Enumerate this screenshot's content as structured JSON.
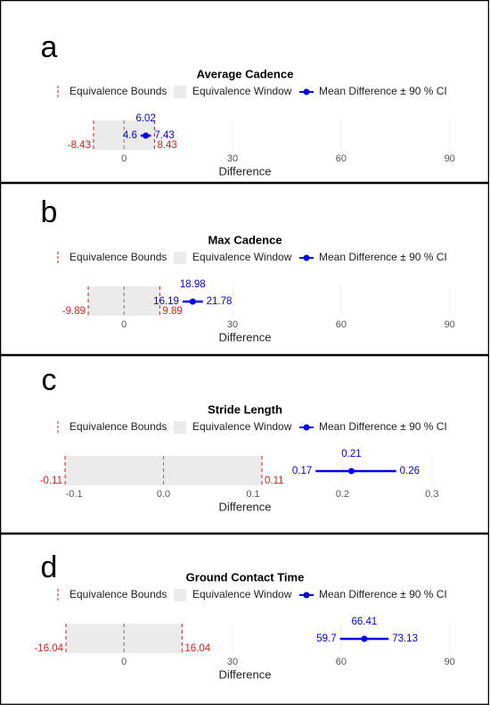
{
  "chart_data": [
    {
      "type": "equivalence",
      "panel_label": "a",
      "title": "Average Cadence",
      "x_label": "Difference",
      "xlim": [
        -20,
        95
      ],
      "xticks": [
        0,
        30,
        60,
        90
      ],
      "grid": true,
      "reference_line": 0,
      "bounds": {
        "name": "Equivalence Bounds",
        "color": "#e31a1c",
        "values": [
          -8.43,
          8.43
        ]
      },
      "window": {
        "name": "Equivalence Window",
        "color": "#ebebeb"
      },
      "estimate": {
        "name": "Mean Difference ± 90 % CI",
        "color": "#0000ee",
        "mean": 6.02,
        "lower": 4.6,
        "upper": 7.43
      }
    },
    {
      "type": "equivalence",
      "panel_label": "b",
      "title": "Max Cadence",
      "x_label": "Difference",
      "xlim": [
        -20,
        95
      ],
      "xticks": [
        0,
        30,
        60,
        90
      ],
      "grid": true,
      "reference_line": 0,
      "bounds": {
        "name": "Equivalence Bounds",
        "color": "#e31a1c",
        "values": [
          -9.89,
          9.89
        ]
      },
      "window": {
        "name": "Equivalence Window",
        "color": "#ebebeb"
      },
      "estimate": {
        "name": "Mean Difference ± 90 % CI",
        "color": "#0000ee",
        "mean": 18.98,
        "lower": 16.19,
        "upper": 21.78
      }
    },
    {
      "type": "equivalence",
      "panel_label": "c",
      "title": "Stride Length",
      "x_label": "Difference",
      "xlim": [
        -0.125,
        0.34
      ],
      "xticks": [
        -0.1,
        {
          "value": 0,
          "label": "0.0"
        },
        0.1,
        0.2,
        0.3
      ],
      "grid": true,
      "reference_line": 0,
      "bounds": {
        "name": "Equivalence Bounds",
        "color": "#e31a1c",
        "values": [
          -0.11,
          0.11
        ]
      },
      "window": {
        "name": "Equivalence Window",
        "color": "#ebebeb"
      },
      "estimate": {
        "name": "Mean Difference ± 90 % CI",
        "color": "#0000ee",
        "mean": 0.21,
        "lower": 0.17,
        "upper": 0.26
      }
    },
    {
      "type": "equivalence",
      "panel_label": "d",
      "title": "Ground Contact Time",
      "x_label": "Difference",
      "xlim": [
        -20,
        95
      ],
      "xticks": [
        0,
        30,
        60,
        90
      ],
      "grid": true,
      "reference_line": 0,
      "bounds": {
        "name": "Equivalence Bounds",
        "color": "#e31a1c",
        "values": [
          -16.04,
          16.04
        ]
      },
      "window": {
        "name": "Equivalence Window",
        "color": "#ebebeb"
      },
      "estimate": {
        "name": "Mean Difference ± 90 % CI",
        "color": "#0000ee",
        "mean": 66.41,
        "lower": 59.7,
        "upper": 73.13
      }
    }
  ]
}
